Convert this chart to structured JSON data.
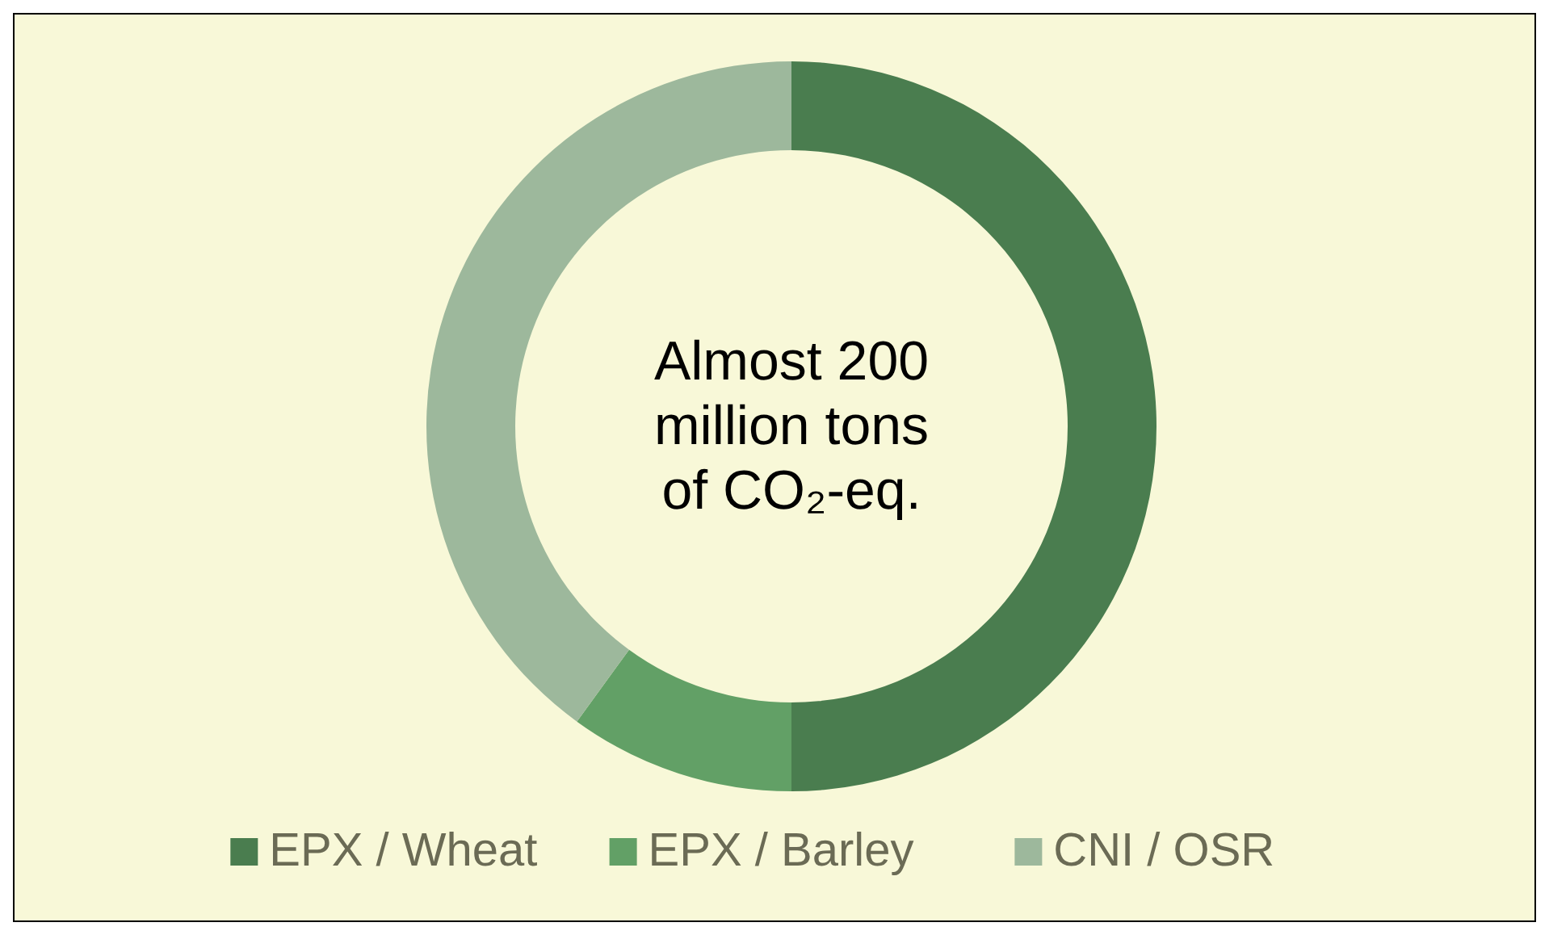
{
  "chart_data": {
    "type": "donut",
    "categories": [
      "EPX / Wheat",
      "EPX / Barley",
      "CNI / OSR"
    ],
    "values": [
      50,
      10,
      40
    ],
    "colors": [
      "#4a7d4f",
      "#62a066",
      "#9db89c"
    ],
    "legend": "bottom",
    "annotations": [
      "Almost 200\nmillion tons\nof CO₂-eq."
    ]
  }
}
